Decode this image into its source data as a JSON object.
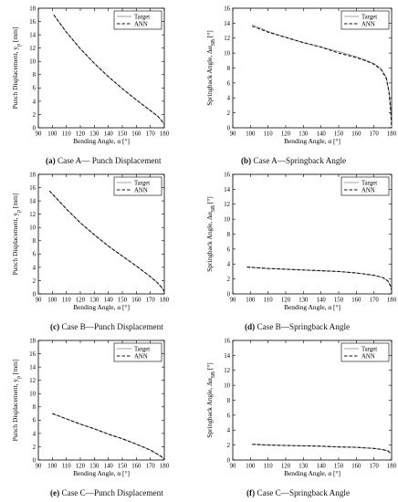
{
  "chart_data": [
    {
      "type": "line",
      "label": "(a)",
      "caption": "Case A— Punch Displacement",
      "xlabel": "Bending Angle, α [°]",
      "ylabel": "Punch Displacement, y_p [mm]",
      "xlim": [
        90,
        180
      ],
      "ylim": [
        0,
        18
      ],
      "xticks": [
        90,
        100,
        110,
        120,
        130,
        140,
        150,
        160,
        170,
        180
      ],
      "yticks": [
        0,
        2,
        4,
        6,
        8,
        10,
        12,
        14,
        16,
        18
      ],
      "legend": "top-right",
      "grid": false,
      "series": [
        {
          "name": "Target",
          "style": "solid",
          "color": "#999999",
          "x": [
            101,
            110,
            120,
            130,
            140,
            150,
            160,
            170,
            175,
            178,
            180
          ],
          "y": [
            17.0,
            14.4,
            11.9,
            9.7,
            7.7,
            5.9,
            4.2,
            2.6,
            1.8,
            1.1,
            0.5
          ]
        },
        {
          "name": "ANN",
          "style": "dashed",
          "color": "#111111",
          "x": [
            101,
            110,
            120,
            130,
            140,
            150,
            160,
            170,
            175,
            178,
            180
          ],
          "y": [
            17.0,
            14.4,
            11.9,
            9.7,
            7.7,
            5.9,
            4.2,
            2.6,
            1.8,
            1.1,
            0.5
          ]
        }
      ]
    },
    {
      "type": "line",
      "label": "(b)",
      "caption": "Case A—Springback Angle",
      "xlabel": "Bending Angle, α [°]",
      "ylabel": "Springback Angle, Δα_SB [°]",
      "xlim": [
        90,
        180
      ],
      "ylim": [
        0,
        16
      ],
      "xticks": [
        90,
        100,
        110,
        120,
        130,
        140,
        150,
        160,
        170,
        180
      ],
      "yticks": [
        0,
        2,
        4,
        6,
        8,
        10,
        12,
        14,
        16
      ],
      "legend": "top-right",
      "grid": false,
      "series": [
        {
          "name": "Target",
          "style": "solid",
          "color": "#999999",
          "x": [
            101,
            110,
            120,
            130,
            140,
            150,
            160,
            165,
            170,
            174,
            177,
            178.5,
            179.5,
            180
          ],
          "y": [
            13.8,
            12.9,
            12.1,
            11.4,
            10.8,
            10.2,
            9.5,
            9.1,
            8.6,
            7.9,
            6.8,
            5.0,
            2.5,
            0.0
          ]
        },
        {
          "name": "ANN",
          "style": "dashed",
          "color": "#111111",
          "x": [
            101,
            110,
            120,
            130,
            140,
            150,
            160,
            165,
            170,
            174,
            177,
            178.5,
            179.5,
            180
          ],
          "y": [
            13.6,
            12.8,
            12.1,
            11.4,
            10.8,
            10.0,
            9.4,
            9.0,
            8.5,
            7.8,
            6.6,
            4.8,
            2.3,
            0.0
          ]
        }
      ]
    },
    {
      "type": "line",
      "label": "(c)",
      "caption": "Case B—Punch Displacement",
      "xlabel": "Bending Angle, α [°]",
      "ylabel": "Punch Displacement, y_p [mm]",
      "xlim": [
        90,
        180
      ],
      "ylim": [
        0,
        18
      ],
      "xticks": [
        90,
        100,
        110,
        120,
        130,
        140,
        150,
        160,
        170,
        180
      ],
      "yticks": [
        0,
        2,
        4,
        6,
        8,
        10,
        12,
        14,
        16,
        18
      ],
      "legend": "top-right",
      "grid": false,
      "series": [
        {
          "name": "Target",
          "style": "solid",
          "color": "#999999",
          "x": [
            98,
            110,
            120,
            130,
            140,
            150,
            160,
            170,
            175,
            178,
            180
          ],
          "y": [
            15.5,
            12.8,
            10.7,
            8.9,
            7.2,
            5.7,
            4.2,
            2.6,
            1.7,
            1.0,
            0.4
          ]
        },
        {
          "name": "ANN",
          "style": "dashed",
          "color": "#111111",
          "x": [
            98,
            110,
            120,
            130,
            140,
            150,
            160,
            170,
            175,
            178,
            180
          ],
          "y": [
            15.5,
            12.8,
            10.7,
            8.9,
            7.2,
            5.7,
            4.2,
            2.6,
            1.7,
            1.0,
            0.4
          ]
        }
      ]
    },
    {
      "type": "line",
      "label": "(d)",
      "caption": "Case B—Springback Angle",
      "xlabel": "Bending Angle, α [°]",
      "ylabel": "Springback Angle, Δα_SB [°]",
      "xlim": [
        90,
        180
      ],
      "ylim": [
        0,
        16
      ],
      "xticks": [
        90,
        100,
        110,
        120,
        130,
        140,
        150,
        160,
        170,
        180
      ],
      "yticks": [
        0,
        2,
        4,
        6,
        8,
        10,
        12,
        14,
        16
      ],
      "legend": "top-right",
      "grid": false,
      "series": [
        {
          "name": "Target",
          "style": "solid",
          "color": "#999999",
          "x": [
            98,
            110,
            120,
            130,
            140,
            150,
            160,
            170,
            175,
            178,
            179.5,
            180
          ],
          "y": [
            3.6,
            3.4,
            3.3,
            3.2,
            3.1,
            3.0,
            2.8,
            2.5,
            2.2,
            1.7,
            1.0,
            0.5
          ]
        },
        {
          "name": "ANN",
          "style": "dashed",
          "color": "#111111",
          "x": [
            98,
            110,
            120,
            130,
            140,
            150,
            160,
            170,
            175,
            178,
            179.5,
            180
          ],
          "y": [
            3.6,
            3.4,
            3.3,
            3.2,
            3.1,
            3.0,
            2.8,
            2.5,
            2.2,
            1.7,
            1.0,
            0.5
          ]
        }
      ]
    },
    {
      "type": "line",
      "label": "(e)",
      "caption": "Case C—Punch Displacement",
      "xlabel": "Bending Angle, α [°]",
      "ylabel": "Punch Displacement, y_p [mm]",
      "xlim": [
        90,
        180
      ],
      "ylim": [
        0,
        18
      ],
      "xticks": [
        90,
        100,
        110,
        120,
        130,
        140,
        150,
        160,
        170,
        180
      ],
      "yticks": [
        0,
        2,
        4,
        6,
        8,
        10,
        12,
        14,
        16,
        18
      ],
      "legend": "top-right",
      "grid": false,
      "series": [
        {
          "name": "Target",
          "style": "solid",
          "color": "#999999",
          "x": [
            100,
            110,
            120,
            130,
            140,
            150,
            160,
            170,
            175,
            178,
            180
          ],
          "y": [
            7.0,
            6.2,
            5.4,
            4.7,
            3.9,
            3.2,
            2.4,
            1.5,
            0.9,
            0.5,
            0.1
          ]
        },
        {
          "name": "ANN",
          "style": "dashed",
          "color": "#111111",
          "x": [
            100,
            110,
            120,
            130,
            140,
            150,
            160,
            170,
            175,
            178,
            180
          ],
          "y": [
            7.0,
            6.2,
            5.4,
            4.7,
            3.9,
            3.2,
            2.4,
            1.5,
            0.9,
            0.5,
            0.1
          ]
        }
      ]
    },
    {
      "type": "line",
      "label": "(f)",
      "caption": "Case C—Springback Angle",
      "xlabel": "Bending Angle, α [°]",
      "ylabel": "Springback Angle, Δα_SB [°]",
      "xlim": [
        90,
        180
      ],
      "ylim": [
        0,
        16
      ],
      "xticks": [
        90,
        100,
        110,
        120,
        130,
        140,
        150,
        160,
        170,
        180
      ],
      "yticks": [
        0,
        2,
        4,
        6,
        8,
        10,
        12,
        14,
        16
      ],
      "legend": "top-right",
      "grid": false,
      "series": [
        {
          "name": "Target",
          "style": "solid",
          "color": "#999999",
          "x": [
            101,
            110,
            120,
            130,
            140,
            150,
            160,
            170,
            175,
            178,
            180
          ],
          "y": [
            2.1,
            2.0,
            1.95,
            1.9,
            1.85,
            1.75,
            1.7,
            1.55,
            1.4,
            1.2,
            0.8
          ]
        },
        {
          "name": "ANN",
          "style": "dashed",
          "color": "#111111",
          "x": [
            101,
            110,
            120,
            130,
            140,
            150,
            160,
            170,
            175,
            178,
            180
          ],
          "y": [
            2.1,
            2.0,
            1.95,
            1.9,
            1.85,
            1.75,
            1.7,
            1.55,
            1.4,
            1.2,
            0.8
          ]
        }
      ]
    }
  ]
}
